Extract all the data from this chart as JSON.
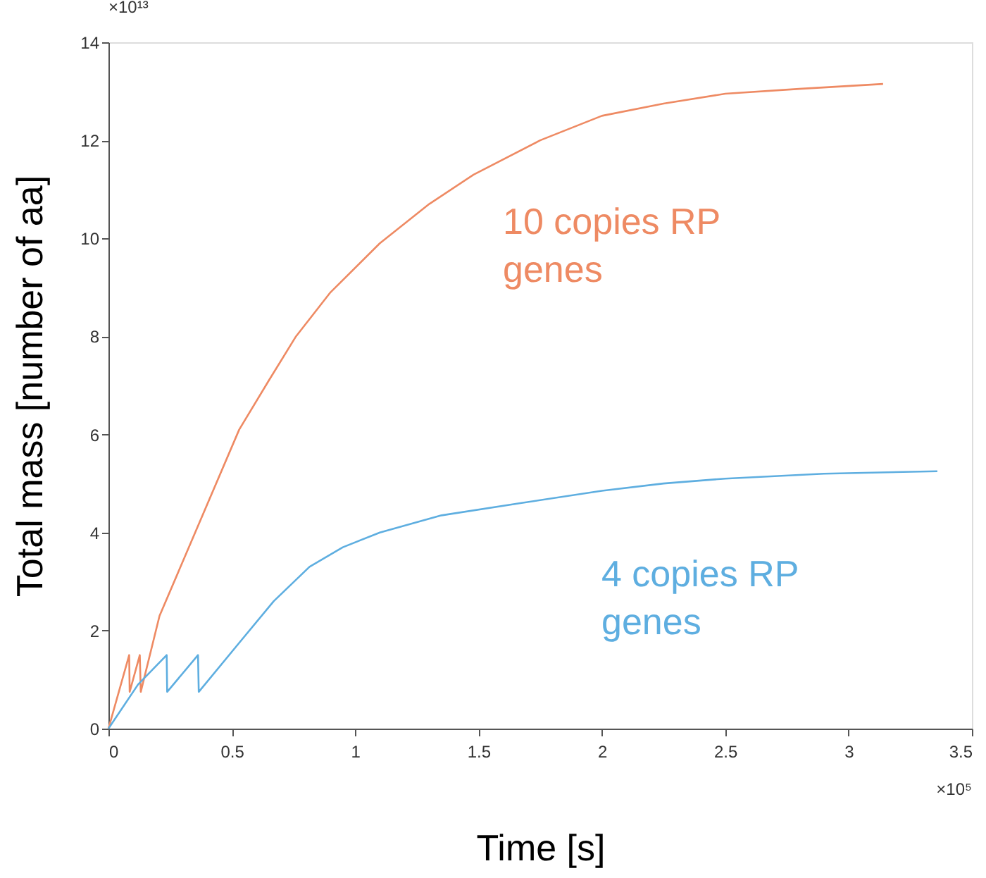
{
  "chart_data": {
    "type": "line",
    "xlabel": "Time [s]",
    "ylabel": "Total mass [number of aa]",
    "xlim": [
      0,
      3.5
    ],
    "xticks": [
      0,
      0.5,
      1,
      1.5,
      2,
      2.5,
      3,
      3.5
    ],
    "ylim": [
      0,
      14
    ],
    "yticks": [
      0,
      2,
      4,
      6,
      8,
      10,
      12,
      14
    ],
    "annotations": [
      "×10¹³",
      "×10⁵"
    ],
    "grid": false,
    "marker": "none",
    "line_style": "solid",
    "series": [
      {
        "name": "10 copies RP genes",
        "color": "#ee8a63",
        "x": [
          0,
          0.084,
          0.086,
          0.127,
          0.131,
          0.207,
          0.36,
          0.53,
          0.65,
          0.76,
          0.9,
          1.1,
          1.3,
          1.48,
          1.75,
          2.0,
          2.25,
          2.5,
          2.8,
          3.14
        ],
        "values": [
          0,
          1.5,
          0.75,
          1.5,
          0.75,
          2.3,
          4.1,
          6.1,
          7.1,
          8.0,
          8.9,
          9.9,
          10.7,
          11.3,
          12.0,
          12.5,
          12.75,
          12.95,
          13.05,
          13.15
        ]
      },
      {
        "name": "4 copies RP genes",
        "color": "#5eaee0",
        "x": [
          0,
          0.12,
          0.236,
          0.238,
          0.363,
          0.366,
          0.53,
          0.67,
          0.815,
          0.95,
          1.1,
          1.35,
          1.67,
          2.0,
          2.25,
          2.5,
          2.9,
          3.36
        ],
        "values": [
          0,
          0.9,
          1.5,
          0.75,
          1.5,
          0.75,
          1.75,
          2.6,
          3.3,
          3.7,
          4.0,
          4.35,
          4.6,
          4.85,
          5.0,
          5.1,
          5.2,
          5.25
        ]
      }
    ]
  }
}
